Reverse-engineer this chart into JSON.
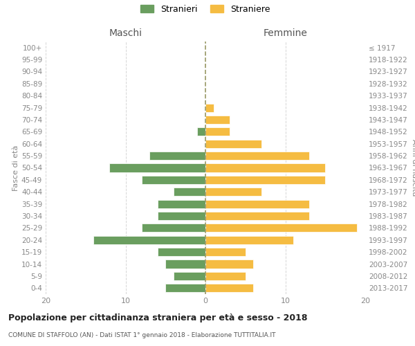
{
  "age_groups": [
    "100+",
    "95-99",
    "90-94",
    "85-89",
    "80-84",
    "75-79",
    "70-74",
    "65-69",
    "60-64",
    "55-59",
    "50-54",
    "45-49",
    "40-44",
    "35-39",
    "30-34",
    "25-29",
    "20-24",
    "15-19",
    "10-14",
    "5-9",
    "0-4"
  ],
  "birth_years": [
    "≤ 1917",
    "1918-1922",
    "1923-1927",
    "1928-1932",
    "1933-1937",
    "1938-1942",
    "1943-1947",
    "1948-1952",
    "1953-1957",
    "1958-1962",
    "1963-1967",
    "1968-1972",
    "1973-1977",
    "1978-1982",
    "1983-1987",
    "1988-1992",
    "1993-1997",
    "1998-2002",
    "2003-2007",
    "2008-2012",
    "2013-2017"
  ],
  "maschi": [
    0,
    0,
    0,
    0,
    0,
    0,
    0,
    1,
    0,
    7,
    12,
    8,
    4,
    6,
    6,
    8,
    14,
    6,
    5,
    4,
    5
  ],
  "femmine": [
    0,
    0,
    0,
    0,
    0,
    1,
    3,
    3,
    7,
    13,
    15,
    15,
    7,
    13,
    13,
    19,
    11,
    5,
    6,
    5,
    6
  ],
  "color_maschi": "#6a9e5f",
  "color_femmine": "#f5bc42",
  "background_color": "#ffffff",
  "grid_color": "#cccccc",
  "title": "Popolazione per cittadinanza straniera per età e sesso - 2018",
  "subtitle": "COMUNE DI STAFFOLO (AN) - Dati ISTAT 1° gennaio 2018 - Elaborazione TUTTITALIA.IT",
  "ylabel_left": "Fasce di età",
  "ylabel_right": "Anni di nascita",
  "xlabel_maschi": "Maschi",
  "xlabel_femmine": "Femmine",
  "legend_maschi": "Stranieri",
  "legend_femmine": "Straniere",
  "xlim": 20,
  "center_line_color": "#999966"
}
